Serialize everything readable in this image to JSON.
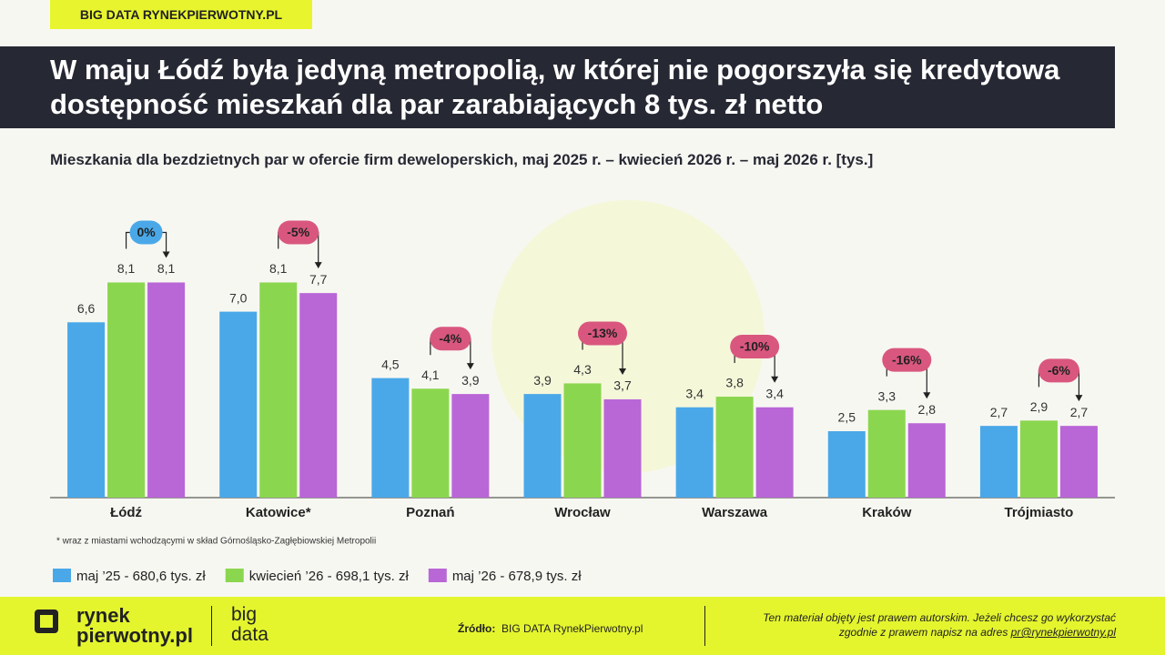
{
  "header": {
    "tag": "BIG DATA RYNEKPIERWOTNY.PL"
  },
  "chart_data": {
    "type": "bar",
    "title": "W maju Łódź była jedyną metropolią, w której nie pogorszyła się kredytowa dostępność mieszkań dla par zarabiających 8 tys. zł netto",
    "subtitle": "Mieszkania dla bezdzietnych par w ofercie firm deweloperskich, maj 2025 r. – kwiecień 2026 r. – maj 2026 r.  [tys.]",
    "categories": [
      "Łódź",
      "Katowice*",
      "Poznań",
      "Wrocław",
      "Warszawa",
      "Kraków",
      "Trójmiasto"
    ],
    "series": [
      {
        "name": "maj ’25 - 680,6 tys. zł",
        "color": "#4aa8e8",
        "values": [
          6.6,
          7.0,
          4.5,
          3.9,
          3.4,
          2.5,
          2.7
        ],
        "value_labels": [
          "6,6",
          "7,0",
          "4,5",
          "3,9",
          "3,4",
          "2,5",
          "2,7"
        ]
      },
      {
        "name": "kwiecień ’26 - 698,1 tys. zł",
        "color": "#8bd64f",
        "values": [
          8.1,
          8.1,
          4.1,
          4.3,
          3.8,
          3.3,
          2.9
        ],
        "value_labels": [
          "8,1",
          "8,1",
          "4,1",
          "4,3",
          "3,8",
          "3,3",
          "2,9"
        ]
      },
      {
        "name": "maj ’26 - 678,9 tys. zł",
        "color": "#b966d6",
        "values": [
          8.1,
          7.7,
          3.9,
          3.7,
          3.4,
          2.8,
          2.7
        ],
        "value_labels": [
          "8,1",
          "7,7",
          "3,9",
          "3,7",
          "3,4",
          "2,8",
          "2,7"
        ]
      }
    ],
    "changes": {
      "values": [
        0,
        -5,
        -4,
        -13,
        -10,
        -16,
        -6
      ],
      "value_labels": [
        "0%",
        "-5%",
        "-4%",
        "-13%",
        "-10%",
        "-16%",
        "-6%"
      ],
      "colors": [
        "#4aa8e8",
        "#d9577f",
        "#d9577f",
        "#d9577f",
        "#d9577f",
        "#d9577f",
        "#d9577f"
      ]
    },
    "footnote": "* wraz z miastami wchodzącymi w skład Górnośląsko-Zagłębiowskiej Metropolii"
  },
  "footer": {
    "logo_top": "rynek",
    "logo_bottom": "pierwotny.pl",
    "brand_top": "big",
    "brand_bottom": "data",
    "source_label": "Źródło:",
    "source": "BIG DATA RynekPierwotny.pl",
    "copyright_1": "Ten materiał objęty jest prawem autorskim. Jeżeli chcesz go wykorzystać",
    "copyright_2": "zgodnie z prawem napisz na adres",
    "email": "pr@rynekpierwotny.pl"
  }
}
